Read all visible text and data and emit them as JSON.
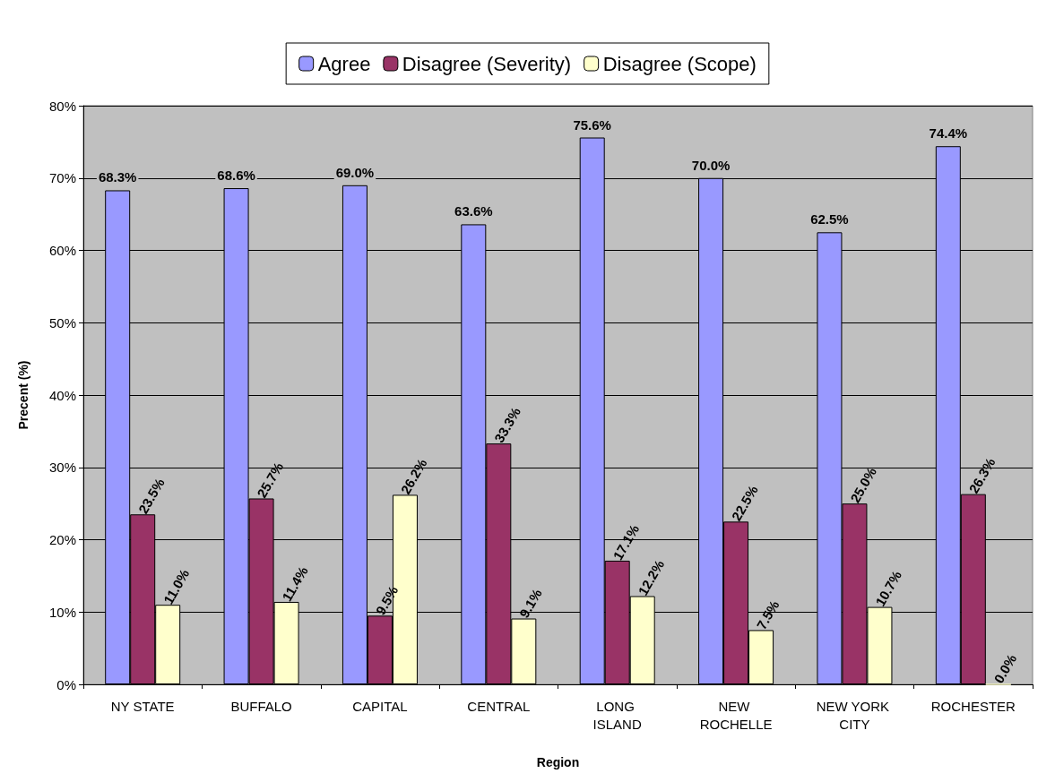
{
  "chart_data": {
    "type": "bar",
    "xlabel": "Region",
    "ylabel": "Precent (%)",
    "categories": [
      "NY STATE",
      "BUFFALO",
      "CAPITAL",
      "CENTRAL",
      "LONG ISLAND",
      "NEW ROCHELLE",
      "NEW YORK CITY",
      "ROCHESTER"
    ],
    "series": [
      {
        "name": "Agree",
        "color": "#9999ff",
        "values": [
          68.3,
          68.6,
          69.0,
          63.6,
          75.6,
          70.0,
          62.5,
          74.4
        ],
        "value_labels": [
          "68.3%",
          "68.6%",
          "69.0%",
          "63.6%",
          "75.6%",
          "70.0%",
          "62.5%",
          "74.4%"
        ]
      },
      {
        "name": "Disagree (Severity)",
        "color": "#993366",
        "values": [
          23.5,
          25.7,
          9.5,
          33.3,
          17.1,
          22.5,
          25.0,
          26.3
        ],
        "value_labels": [
          "23.5%",
          "25.7%",
          "9.5%",
          "33.3%",
          "17.1%",
          "22.5%",
          "25.0%",
          "26.3%"
        ]
      },
      {
        "name": "Disagree (Scope)",
        "color": "#ffffcc",
        "values": [
          11.0,
          11.4,
          26.2,
          9.1,
          12.2,
          7.5,
          10.7,
          0.0
        ],
        "value_labels": [
          "11.0%",
          "11.4%",
          "26.2%",
          "9.1%",
          "12.2%",
          "7.5%",
          "10.7%",
          "0.0%"
        ]
      }
    ],
    "ylim": [
      0,
      80
    ],
    "yticks": [
      {
        "value": 0,
        "label": "0%"
      },
      {
        "value": 10,
        "label": "10%"
      },
      {
        "value": 20,
        "label": "20%"
      },
      {
        "value": 30,
        "label": "30%"
      },
      {
        "value": 40,
        "label": "40%"
      },
      {
        "value": 50,
        "label": "50%"
      },
      {
        "value": 60,
        "label": "60%"
      },
      {
        "value": 70,
        "label": "70%"
      },
      {
        "value": 80,
        "label": "80%"
      }
    ],
    "grid": "y",
    "legend": "top"
  }
}
